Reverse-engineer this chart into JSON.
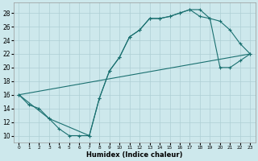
{
  "xlabel": "Humidex (Indice chaleur)",
  "background_color": "#cde8ec",
  "grid_color": "#aecfd4",
  "line_color": "#1a7070",
  "xlim": [
    -0.5,
    23.5
  ],
  "ylim": [
    9.0,
    29.5
  ],
  "xticks": [
    0,
    1,
    2,
    3,
    4,
    5,
    6,
    7,
    8,
    9,
    10,
    11,
    12,
    13,
    14,
    15,
    16,
    17,
    18,
    19,
    20,
    21,
    22,
    23
  ],
  "yticks": [
    10,
    12,
    14,
    16,
    18,
    20,
    22,
    24,
    26,
    28
  ],
  "line1_x": [
    0,
    1,
    2,
    3,
    4,
    5,
    6,
    7,
    8,
    9,
    10,
    11,
    12,
    13,
    14,
    15,
    16,
    17,
    18,
    19,
    20,
    21,
    22,
    23
  ],
  "line1_y": [
    16,
    14.5,
    14,
    12.5,
    11,
    10,
    10,
    10,
    15.5,
    19.5,
    21.5,
    24.5,
    25.5,
    27.2,
    27.2,
    27.5,
    28.0,
    28.5,
    28.5,
    27.2,
    26.8,
    25.5,
    23.5,
    22.0
  ],
  "line2_x": [
    0,
    3,
    7,
    8,
    9,
    10,
    11,
    12,
    13,
    14,
    15,
    16,
    17,
    18,
    19,
    20,
    21,
    22,
    23
  ],
  "line2_y": [
    16,
    12.5,
    10,
    15.5,
    19.5,
    21.5,
    24.5,
    25.5,
    27.2,
    27.2,
    27.5,
    28.0,
    28.5,
    27.5,
    27.2,
    20.0,
    20.0,
    21.0,
    22.0
  ],
  "line3_x": [
    0,
    23
  ],
  "line3_y": [
    16,
    22.0
  ]
}
